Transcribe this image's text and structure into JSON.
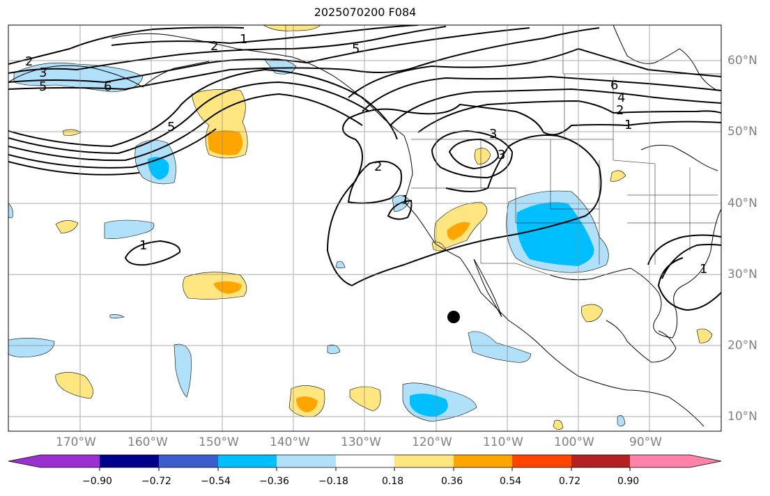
{
  "title": "2025070200 F084",
  "map": {
    "extent": {
      "lon_min": -180,
      "lon_max": -80,
      "lat_min": 8,
      "lat_max": 65
    },
    "projection": "PlateCarree",
    "grid": true,
    "longitude_labels": [
      "170°W",
      "160°W",
      "150°W",
      "140°W",
      "130°W",
      "120°W",
      "110°W",
      "100°W",
      "90°W"
    ],
    "latitude_labels": [
      "60°N",
      "50°N",
      "40°N",
      "30°N",
      "20°N",
      "10°N"
    ],
    "contour_labels": [
      "1",
      "2",
      "5",
      "2",
      "3",
      "5",
      "6",
      "5",
      "6",
      "4",
      "2",
      "1",
      "3",
      "2",
      "1",
      "3",
      "1",
      "1"
    ],
    "marker": {
      "shape": "filled circle",
      "color": "#000000"
    }
  },
  "colorbar": {
    "colors": [
      "#9b30d0",
      "#00008b",
      "#3a5fcd",
      "#00bfff",
      "#b0e0fa",
      "#ffffff",
      "#ffe680",
      "#ffa500",
      "#ff4500",
      "#b22222",
      "#ff82ab"
    ],
    "tick_labels": [
      "−0.90",
      "−0.72",
      "−0.54",
      "−0.36",
      "−0.18",
      "0.18",
      "0.36",
      "0.54",
      "0.72",
      "0.90"
    ]
  }
}
